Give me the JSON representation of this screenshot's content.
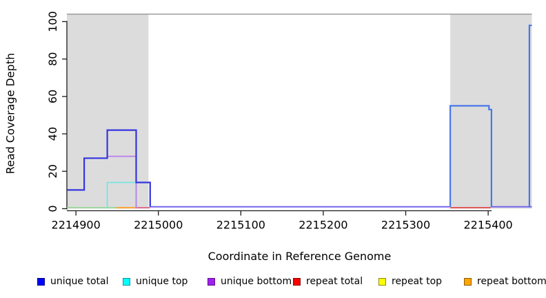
{
  "chart_data": {
    "type": "line",
    "subtype": "step-coverage-plot",
    "title": "",
    "xlabel": "Coordinate in Reference Genome",
    "ylabel": "Read Coverage Depth",
    "xlim": [
      2214889,
      2215453
    ],
    "ylim": [
      0,
      104
    ],
    "x_ticks": [
      2214900,
      2215000,
      2215100,
      2215200,
      2215300,
      2215400
    ],
    "y_ticks": [
      0,
      20,
      40,
      60,
      80,
      100
    ],
    "y_tick_labels_rotated": true,
    "grid": false,
    "frame_top_color": "#9a9a9a",
    "axis_color": "#1a1a1a",
    "shaded_regions": [
      {
        "name": "repeat-region-left",
        "x0": 2214889,
        "x1": 2214988,
        "color": "#dcdcdc"
      },
      {
        "name": "repeat-region-right",
        "x0": 2215354,
        "x1": 2215453,
        "color": "#dcdcdc"
      }
    ],
    "series": [
      {
        "name": "baseline-green-overlap",
        "color": "#90d690",
        "width": 1.6,
        "points": [
          [
            2214889,
            0.5
          ],
          [
            2214949,
            0.5
          ]
        ]
      },
      {
        "name": "repeat-bottom-baseline",
        "color": "#ffa033",
        "width": 2,
        "points": [
          [
            2214949,
            0.5
          ],
          [
            2214974,
            0.5
          ]
        ]
      },
      {
        "name": "repeat-total-baseline-left",
        "color": "#dd6080",
        "width": 1.8,
        "points": [
          [
            2214974,
            0.5
          ],
          [
            2214990,
            0.5
          ]
        ]
      },
      {
        "name": "repeat-total-baseline-right",
        "color": "#e04444",
        "width": 1.8,
        "points": [
          [
            2215354,
            0.5
          ],
          [
            2215403,
            0.5
          ]
        ]
      },
      {
        "name": "unique-baseline-mid",
        "color": "#7466ee",
        "width": 2,
        "points": [
          [
            2214990,
            1
          ],
          [
            2215354,
            1
          ]
        ]
      },
      {
        "name": "unique-baseline-right",
        "color": "#7466ee",
        "width": 2,
        "points": [
          [
            2215403,
            1
          ],
          [
            2215453,
            1
          ]
        ]
      },
      {
        "name": "unique-top",
        "color": "#76e5e2",
        "width": 1.8,
        "points": [
          [
            2214938,
            0
          ],
          [
            2214938,
            14
          ],
          [
            2214973,
            14
          ],
          [
            2214973,
            0
          ]
        ]
      },
      {
        "name": "unique-bottom",
        "color": "#ba7be8",
        "width": 1.8,
        "points": [
          [
            2214938,
            28
          ],
          [
            2214973,
            28
          ],
          [
            2214973,
            0
          ]
        ]
      },
      {
        "name": "unique-total-left",
        "color": "#3434df",
        "width": 2.2,
        "points": [
          [
            2214889,
            10
          ],
          [
            2214910,
            10
          ],
          [
            2214910,
            27
          ],
          [
            2214938,
            27
          ],
          [
            2214938,
            42
          ],
          [
            2214973,
            42
          ],
          [
            2214973,
            14
          ],
          [
            2214990,
            14
          ],
          [
            2214990,
            1
          ]
        ]
      },
      {
        "name": "unique-total-right",
        "color": "#4778ea",
        "width": 2.2,
        "points": [
          [
            2215354,
            1
          ],
          [
            2215354,
            55
          ],
          [
            2215401,
            55
          ],
          [
            2215401,
            53
          ],
          [
            2215404,
            53
          ],
          [
            2215404,
            1
          ]
        ]
      },
      {
        "name": "unique-total-right-spike",
        "color": "#4778ea",
        "width": 2.2,
        "points": [
          [
            2215450,
            1
          ],
          [
            2215450,
            98
          ],
          [
            2215453,
            98
          ]
        ]
      }
    ],
    "legend": {
      "position": "bottom",
      "items": [
        {
          "label": "unique total",
          "fill": "#0000ff",
          "border": "#000080"
        },
        {
          "label": "unique top",
          "fill": "#00ffff",
          "border": "#009898"
        },
        {
          "label": "unique bottom",
          "fill": "#a020f0",
          "border": "#5c0f8c"
        },
        {
          "label": "repeat total",
          "fill": "#ff0000",
          "border": "#8c0000"
        },
        {
          "label": "repeat top",
          "fill": "#ffff00",
          "border": "#8c8c00"
        },
        {
          "label": "repeat bottom",
          "fill": "#ffa500",
          "border": "#8c5c00"
        }
      ]
    }
  }
}
